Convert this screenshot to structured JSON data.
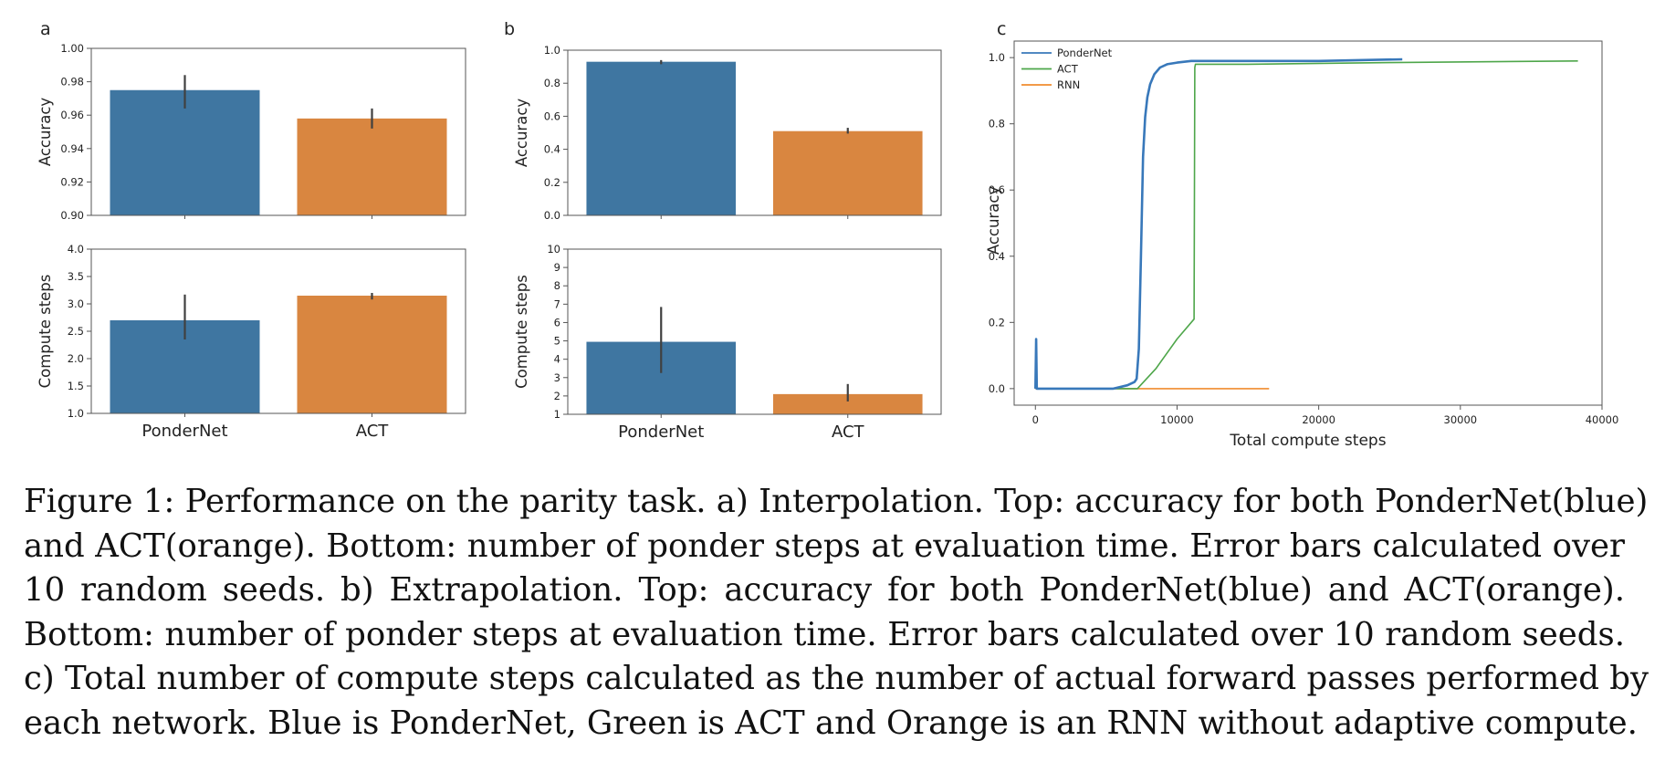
{
  "colors": {
    "blue": "#3F76A1",
    "orange": "#D98640",
    "green": "#4EA64A",
    "line_orange": "#F08C2E",
    "line_blue": "#3878BA",
    "axis": "#555555",
    "errbar": "#404040"
  },
  "panel_labels": {
    "a": "a",
    "b": "b",
    "c": "c"
  },
  "chart_data": [
    {
      "id": "a_top",
      "type": "bar",
      "categories": [
        "PonderNet",
        "ACT"
      ],
      "values": [
        0.975,
        0.958
      ],
      "errors": [
        [
          0.964,
          0.984
        ],
        [
          0.952,
          0.964
        ]
      ],
      "ylabel": "Accuracy",
      "ylim": [
        0.9,
        1.0
      ],
      "yticks": [
        "0.90",
        "0.92",
        "0.94",
        "0.96",
        "0.98",
        "1.00"
      ]
    },
    {
      "id": "a_bottom",
      "type": "bar",
      "categories": [
        "PonderNet",
        "ACT"
      ],
      "values": [
        2.7,
        3.15
      ],
      "errors": [
        [
          2.35,
          3.17
        ],
        [
          3.08,
          3.2
        ]
      ],
      "ylabel": "Compute steps",
      "ylim": [
        1.0,
        4.0
      ],
      "yticks": [
        "1.0",
        "1.5",
        "2.0",
        "2.5",
        "3.0",
        "3.5",
        "4.0"
      ],
      "xticklabels": [
        "PonderNet",
        "ACT"
      ]
    },
    {
      "id": "b_top",
      "type": "bar",
      "categories": [
        "PonderNet",
        "ACT"
      ],
      "values": [
        0.93,
        0.51
      ],
      "errors": [
        [
          0.915,
          0.94
        ],
        [
          0.495,
          0.53
        ]
      ],
      "ylabel": "Accuracy",
      "ylim": [
        0.0,
        1.0
      ],
      "yticks": [
        "0.0",
        "0.2",
        "0.4",
        "0.6",
        "0.8",
        "1.0"
      ]
    },
    {
      "id": "b_bottom",
      "type": "bar",
      "categories": [
        "PonderNet",
        "ACT"
      ],
      "values": [
        4.95,
        2.1
      ],
      "errors": [
        [
          3.25,
          6.85
        ],
        [
          1.7,
          2.65
        ]
      ],
      "ylabel": "Compute steps",
      "ylim": [
        1,
        10
      ],
      "yticks": [
        "1",
        "2",
        "3",
        "4",
        "5",
        "6",
        "7",
        "8",
        "9",
        "10"
      ],
      "xticklabels": [
        "PonderNet",
        "ACT"
      ]
    },
    {
      "id": "c",
      "type": "line",
      "xlabel": "Total compute steps",
      "ylabel": "Accuracy",
      "xlim": [
        -1500,
        40000
      ],
      "ylim": [
        -0.05,
        1.05
      ],
      "xticks": [
        0,
        10000,
        20000,
        30000,
        40000
      ],
      "xticklabels": [
        "0",
        "10000",
        "20000",
        "30000",
        "40000"
      ],
      "yticks": [
        0.0,
        0.2,
        0.4,
        0.6,
        0.8,
        1.0
      ],
      "yticklabels": [
        "0.0",
        "0.2",
        "0.4",
        "0.6",
        "0.8",
        "1.0"
      ],
      "legend": [
        "PonderNet",
        "ACT",
        "RNN"
      ],
      "series": [
        {
          "name": "PonderNet",
          "x": [
            0,
            50,
            100,
            500,
            3000,
            5500,
            6500,
            7000,
            7150,
            7300,
            7450,
            7600,
            7750,
            7900,
            8100,
            8400,
            8800,
            9300,
            10000,
            11000,
            13000,
            16000,
            20000,
            25900
          ],
          "y": [
            0.0,
            0.15,
            0.0,
            0.0,
            0.0,
            0.0,
            0.01,
            0.02,
            0.03,
            0.12,
            0.4,
            0.7,
            0.82,
            0.88,
            0.92,
            0.95,
            0.97,
            0.98,
            0.985,
            0.99,
            0.99,
            0.99,
            0.99,
            0.995
          ]
        },
        {
          "name": "ACT",
          "x": [
            0,
            50,
            100,
            500,
            7200,
            8500,
            10000,
            11200,
            11250,
            11300,
            15000,
            25000,
            38300
          ],
          "y": [
            0.0,
            0.15,
            0.0,
            0.0,
            0.0,
            0.06,
            0.15,
            0.21,
            0.97,
            0.98,
            0.98,
            0.985,
            0.99
          ]
        },
        {
          "name": "RNN",
          "x": [
            0,
            16500
          ],
          "y": [
            0.0,
            0.0
          ]
        }
      ]
    }
  ],
  "caption_lines": [
    "Figure 1: Performance on the parity task. a) Interpolation. Top: accuracy for both PonderNet(blue)",
    "and ACT(orange). Bottom: number of ponder steps at evaluation time. Error bars calculated over",
    "10 random seeds. b) Extrapolation. Top: accuracy for both PonderNet(blue) and ACT(orange).",
    "Bottom: number of ponder steps at evaluation time. Error bars calculated over 10 random seeds.",
    "c) Total number of compute steps calculated as the number of actual forward passes performed by",
    "each network. Blue is PonderNet, Green is ACT and Orange is an RNN without adaptive compute."
  ]
}
